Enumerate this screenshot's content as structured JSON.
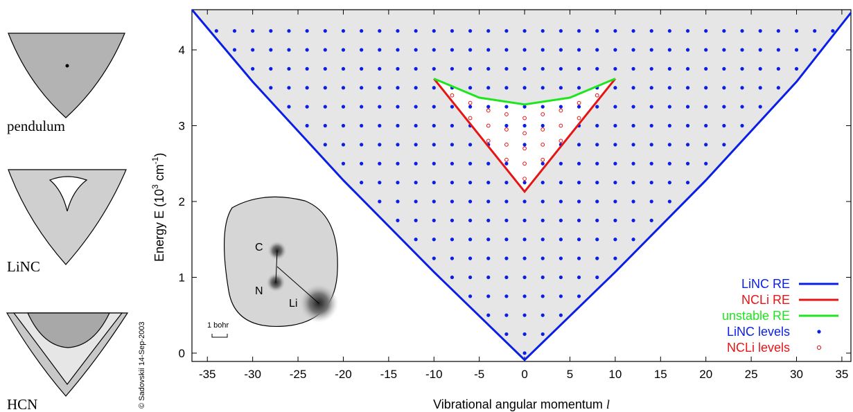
{
  "chart_data": {
    "type": "levels",
    "xlabel": "Vibrational angular momentum",
    "xlabel_symbol": "l",
    "ylabel_parts": [
      "Energy E (10",
      "3",
      " cm",
      "-1",
      ")"
    ],
    "xlim": [
      -36.7,
      36
    ],
    "ylim": [
      -0.11,
      4.53
    ],
    "xticks": [
      -35,
      -30,
      -25,
      -20,
      -15,
      -10,
      -5,
      0,
      5,
      10,
      15,
      20,
      25,
      30,
      35
    ],
    "yticks": [
      0,
      1,
      2,
      3,
      4
    ],
    "legend": "lower right",
    "series": [
      {
        "name": "LiNC RE",
        "color": "#0a1ee6",
        "style": "line",
        "x": [
          -36.7,
          -30,
          -20,
          -10,
          0,
          10,
          20,
          30,
          36
        ],
        "y": [
          4.53,
          3.58,
          2.28,
          1.07,
          -0.09,
          1.07,
          2.28,
          3.58,
          4.49
        ]
      },
      {
        "name": "NCLi RE",
        "color": "#e61414",
        "style": "line",
        "x": [
          -10,
          0,
          10
        ],
        "y": [
          3.62,
          2.13,
          3.62
        ]
      },
      {
        "name": "unstable RE",
        "color": "#1ee61e",
        "style": "line",
        "x": [
          -10,
          -5,
          0,
          5,
          10
        ],
        "y": [
          3.62,
          3.37,
          3.28,
          3.37,
          3.62
        ]
      },
      {
        "name": "LiNC levels",
        "color": "#0a1ee6",
        "style": "dot",
        "columns": [
          {
            "l": -34,
            "E": [
              4.25
            ]
          },
          {
            "l": -32,
            "E": [
              4,
              4.25
            ]
          },
          {
            "l": -30,
            "E": [
              3.75,
              4,
              4.25
            ]
          },
          {
            "l": -28,
            "E": [
              3.5,
              3.75,
              4,
              4.25
            ]
          },
          {
            "l": -26,
            "E": [
              3.25,
              3.5,
              3.75,
              4,
              4.25
            ]
          },
          {
            "l": -24,
            "E": [
              3,
              3.25,
              3.5,
              3.75,
              4,
              4.25
            ]
          },
          {
            "l": -22,
            "E": [
              2.75,
              3,
              3.25,
              3.5,
              3.75,
              4,
              4.25
            ]
          },
          {
            "l": -20,
            "E": [
              2.5,
              2.75,
              3,
              3.25,
              3.5,
              3.75,
              4,
              4.25
            ]
          },
          {
            "l": -18,
            "E": [
              2.25,
              2.5,
              2.75,
              3,
              3.25,
              3.5,
              3.75,
              4,
              4.25
            ]
          },
          {
            "l": -16,
            "E": [
              2,
              2.25,
              2.5,
              2.75,
              3,
              3.25,
              3.5,
              3.75,
              4,
              4.25
            ]
          },
          {
            "l": -14,
            "E": [
              1.75,
              2,
              2.25,
              2.5,
              2.75,
              3,
              3.25,
              3.5,
              3.75,
              4,
              4.25
            ]
          },
          {
            "l": -12,
            "E": [
              1.5,
              1.75,
              2,
              2.25,
              2.5,
              2.75,
              3,
              3.25,
              3.5,
              3.75,
              4,
              4.25
            ]
          },
          {
            "l": -10,
            "E": [
              1.25,
              1.5,
              1.75,
              2,
              2.25,
              2.5,
              2.75,
              3,
              3.25,
              3.5,
              3.75,
              4,
              4.25
            ]
          },
          {
            "l": -8,
            "E": [
              1,
              1.25,
              1.5,
              1.75,
              2,
              2.25,
              2.5,
              2.75,
              3,
              3.25,
              3.5,
              3.75,
              4,
              4.25
            ]
          },
          {
            "l": -6,
            "E": [
              0.75,
              1,
              1.25,
              1.5,
              1.75,
              2,
              2.25,
              2.5,
              2.75,
              3,
              3.25,
              3.5,
              3.75,
              4,
              4.25
            ]
          },
          {
            "l": -4,
            "E": [
              0.5,
              0.75,
              1,
              1.25,
              1.5,
              1.75,
              2,
              2.25,
              2.5,
              2.75,
              3,
              3.25,
              3.5,
              3.75,
              4,
              4.25
            ]
          },
          {
            "l": -2,
            "E": [
              0.25,
              0.5,
              0.75,
              1,
              1.25,
              1.5,
              1.75,
              2,
              2.25,
              2.5,
              2.75,
              3,
              3.25,
              3.5,
              3.75,
              4,
              4.25
            ]
          },
          {
            "l": 0,
            "E": [
              0,
              0.25,
              0.5,
              0.75,
              1,
              1.25,
              1.5,
              1.75,
              2,
              2.25,
              2.5,
              2.75,
              3,
              3.25,
              3.5,
              3.75,
              4,
              4.25
            ]
          },
          {
            "l": 2,
            "E": [
              0.25,
              0.5,
              0.75,
              1,
              1.25,
              1.5,
              1.75,
              2,
              2.25,
              2.5,
              2.75,
              3,
              3.25,
              3.5,
              3.75,
              4,
              4.25
            ]
          },
          {
            "l": 4,
            "E": [
              0.5,
              0.75,
              1,
              1.25,
              1.5,
              1.75,
              2,
              2.25,
              2.5,
              2.75,
              3,
              3.25,
              3.5,
              3.75,
              4,
              4.25
            ]
          },
          {
            "l": 6,
            "E": [
              0.75,
              1,
              1.25,
              1.5,
              1.75,
              2,
              2.25,
              2.5,
              2.75,
              3,
              3.25,
              3.5,
              3.75,
              4,
              4.25
            ]
          },
          {
            "l": 8,
            "E": [
              1,
              1.25,
              1.5,
              1.75,
              2,
              2.25,
              2.5,
              2.75,
              3,
              3.25,
              3.5,
              3.75,
              4,
              4.25
            ]
          },
          {
            "l": 10,
            "E": [
              1.25,
              1.5,
              1.75,
              2,
              2.25,
              2.5,
              2.75,
              3,
              3.25,
              3.5,
              3.75,
              4,
              4.25
            ]
          },
          {
            "l": 12,
            "E": [
              1.5,
              1.75,
              2,
              2.25,
              2.5,
              2.75,
              3,
              3.25,
              3.5,
              3.75,
              4,
              4.25
            ]
          },
          {
            "l": 14,
            "E": [
              1.75,
              2,
              2.25,
              2.5,
              2.75,
              3,
              3.25,
              3.5,
              3.75,
              4,
              4.25
            ]
          },
          {
            "l": 16,
            "E": [
              2,
              2.25,
              2.5,
              2.75,
              3,
              3.25,
              3.5,
              3.75,
              4,
              4.25
            ]
          },
          {
            "l": 18,
            "E": [
              2.25,
              2.5,
              2.75,
              3,
              3.25,
              3.5,
              3.75,
              4,
              4.25
            ]
          },
          {
            "l": 20,
            "E": [
              2.5,
              2.75,
              3,
              3.25,
              3.5,
              3.75,
              4,
              4.25
            ]
          },
          {
            "l": 22,
            "E": [
              2.75,
              3,
              3.25,
              3.5,
              3.75,
              4,
              4.25
            ]
          },
          {
            "l": 24,
            "E": [
              3,
              3.25,
              3.5,
              3.75,
              4,
              4.25
            ]
          },
          {
            "l": 26,
            "E": [
              3.25,
              3.5,
              3.75,
              4,
              4.25
            ]
          },
          {
            "l": 28,
            "E": [
              3.5,
              3.75,
              4,
              4.25
            ]
          },
          {
            "l": 30,
            "E": [
              3.75,
              4,
              4.25
            ]
          },
          {
            "l": 32,
            "E": [
              4,
              4.25
            ]
          },
          {
            "l": 34,
            "E": [
              4.25
            ]
          }
        ]
      },
      {
        "name": "NCLi levels",
        "color": "#e61414",
        "style": "circle",
        "columns": [
          {
            "l": -8,
            "E": [
              3.4
            ]
          },
          {
            "l": -6,
            "E": [
              3.1,
              3.3
            ]
          },
          {
            "l": -4,
            "E": [
              2.8,
              3.0,
              3.2
            ]
          },
          {
            "l": -2,
            "E": [
              2.55,
              2.75,
              2.95,
              3.15
            ]
          },
          {
            "l": 0,
            "E": [
              2.3,
              2.5,
              2.7,
              2.9,
              3.1
            ]
          },
          {
            "l": 2,
            "E": [
              2.55,
              2.75,
              2.95,
              3.15
            ]
          },
          {
            "l": 4,
            "E": [
              2.8,
              3.0,
              3.2
            ]
          },
          {
            "l": 6,
            "E": [
              3.1,
              3.3
            ]
          },
          {
            "l": 8,
            "E": [
              3.4
            ]
          }
        ]
      }
    ]
  },
  "panels": [
    "pendulum",
    "LiNC",
    "HCN"
  ],
  "credit": "© Sadovskií 14-Sep-2003",
  "inset": {
    "atoms": [
      "C",
      "N",
      "Li"
    ],
    "scale": "1 bohr"
  }
}
